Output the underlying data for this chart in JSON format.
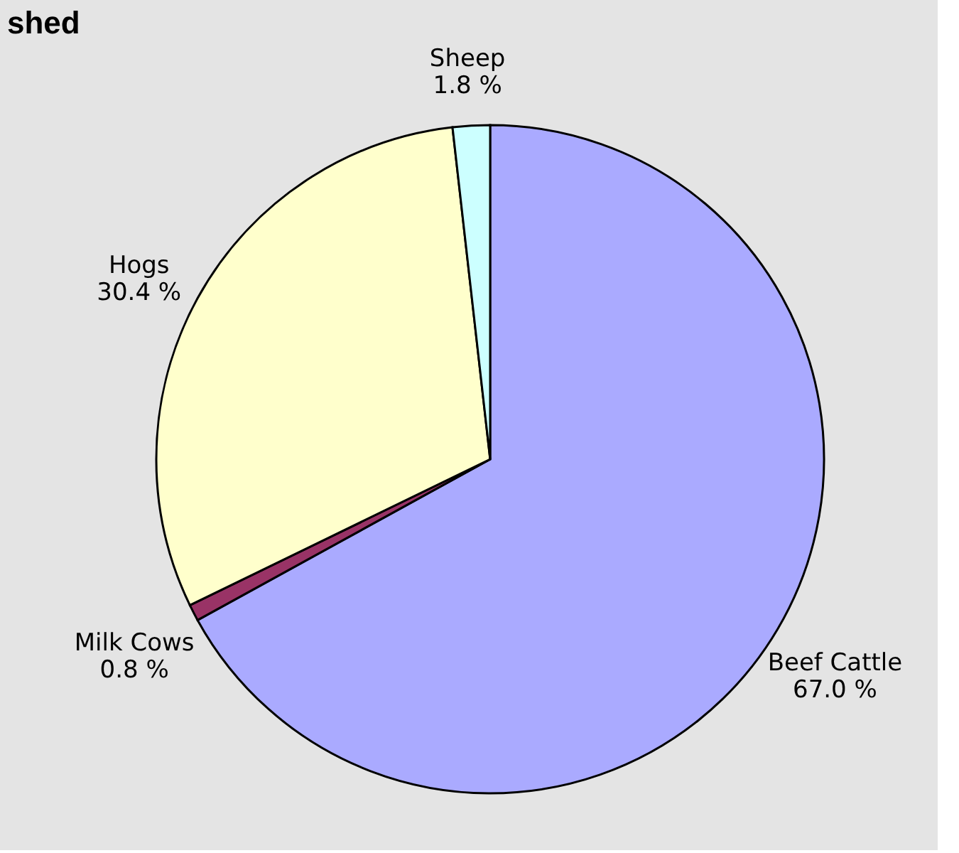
{
  "chart_data": {
    "type": "pie",
    "title": "shed",
    "categories": [
      "Beef Cattle",
      "Milk Cows",
      "Hogs",
      "Sheep"
    ],
    "values": [
      67.0,
      0.8,
      30.4,
      1.8
    ],
    "colors": [
      "#aaaaff",
      "#993366",
      "#ffffcc",
      "#ccffff"
    ],
    "value_labels": [
      "67.0 %",
      "0.8 %",
      "30.4 %",
      "1.8 %"
    ],
    "legend": false
  }
}
